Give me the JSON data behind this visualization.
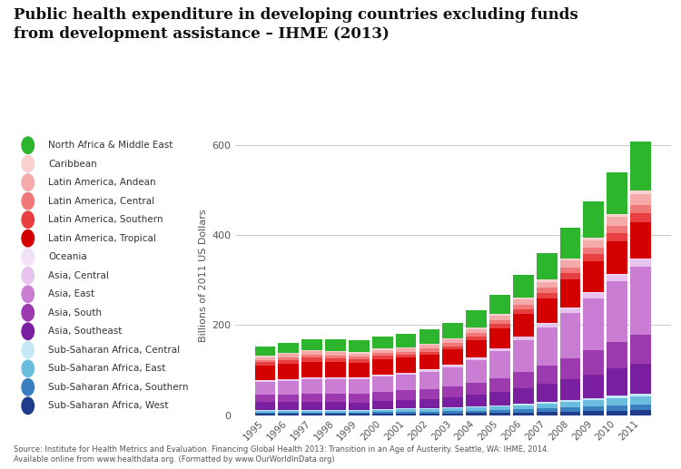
{
  "title": "Public health expenditure in developing countries excluding funds\nfrom development assistance – IHME (2013)",
  "ylabel": "Billions of 2011 US Dollars",
  "source": "Source: Institute for Health Metrics and Evaluation. Financing Global Health 2013: Transition in an Age of Austerity. Seattle, WA: IHME, 2014.\nAvailable online from www.healthdata.org. (Formatted by www.OurWorldInData.org)",
  "years": [
    1995,
    1996,
    1997,
    1998,
    1999,
    2000,
    2001,
    2002,
    2003,
    2004,
    2005,
    2006,
    2007,
    2008,
    2009,
    2010,
    2011
  ],
  "ylim": [
    0,
    620
  ],
  "yticks": [
    0,
    200,
    400,
    600
  ],
  "regions": [
    "Sub-Saharan Africa, West",
    "Sub-Saharan Africa, Southern",
    "Sub-Saharan Africa, East",
    "Sub-Saharan Africa, Central",
    "Asia, Southeast",
    "Asia, South",
    "Asia, East",
    "Asia, Central",
    "Oceania",
    "Latin America, Tropical",
    "Latin America, Southern",
    "Latin America, Central",
    "Latin America, Andean",
    "Caribbean",
    "North Africa & Middle East"
  ],
  "colors": [
    "#1f3b8c",
    "#3a80c1",
    "#6bbde0",
    "#c5e8f7",
    "#7a1fa0",
    "#9e3ab0",
    "#c97ed4",
    "#e6c4ee",
    "#f2e0f5",
    "#d40000",
    "#e84040",
    "#f07878",
    "#f5aaaa",
    "#fad0d0",
    "#2db52d"
  ],
  "data": {
    "Sub-Saharan Africa, West": [
      3,
      3,
      3,
      3,
      3,
      3,
      4,
      4,
      4,
      5,
      5,
      6,
      7,
      8,
      9,
      10,
      11
    ],
    "Sub-Saharan Africa, Southern": [
      3,
      3,
      3,
      3,
      3,
      4,
      4,
      4,
      5,
      5,
      6,
      7,
      8,
      9,
      10,
      11,
      12
    ],
    "Sub-Saharan Africa, East": [
      3,
      3,
      4,
      4,
      4,
      5,
      5,
      5,
      6,
      7,
      8,
      9,
      10,
      12,
      14,
      16,
      18
    ],
    "Sub-Saharan Africa, Central": [
      2,
      2,
      2,
      2,
      2,
      2,
      2,
      2,
      2,
      2,
      3,
      3,
      4,
      4,
      5,
      6,
      6
    ],
    "Asia, Southeast": [
      18,
      18,
      18,
      17,
      16,
      17,
      18,
      20,
      22,
      26,
      30,
      35,
      40,
      46,
      52,
      60,
      66
    ],
    "Asia, South": [
      16,
      17,
      18,
      19,
      20,
      21,
      22,
      23,
      25,
      27,
      30,
      35,
      40,
      48,
      54,
      60,
      66
    ],
    "Asia, East": [
      28,
      30,
      32,
      32,
      31,
      33,
      35,
      38,
      42,
      50,
      60,
      72,
      86,
      100,
      116,
      134,
      150
    ],
    "Asia, Central": [
      3,
      3,
      3,
      3,
      3,
      3,
      3,
      4,
      4,
      5,
      6,
      7,
      8,
      10,
      12,
      14,
      16
    ],
    "Oceania": [
      1,
      1,
      1,
      1,
      1,
      1,
      1,
      1,
      1,
      1,
      1,
      1,
      2,
      2,
      2,
      2,
      2
    ],
    "Latin America, Tropical": [
      32,
      33,
      35,
      34,
      33,
      35,
      34,
      33,
      35,
      38,
      44,
      50,
      55,
      62,
      68,
      74,
      82
    ],
    "Latin America, Southern": [
      9,
      10,
      10,
      9,
      8,
      8,
      7,
      7,
      7,
      8,
      9,
      10,
      12,
      14,
      15,
      17,
      20
    ],
    "Latin America, Central": [
      5,
      6,
      6,
      6,
      6,
      6,
      6,
      7,
      7,
      8,
      9,
      10,
      11,
      13,
      14,
      16,
      18
    ],
    "Latin America, Andean": [
      6,
      7,
      7,
      7,
      7,
      7,
      7,
      8,
      8,
      9,
      10,
      12,
      13,
      15,
      17,
      20,
      23
    ],
    "Caribbean": [
      3,
      3,
      3,
      3,
      3,
      3,
      3,
      3,
      3,
      4,
      4,
      4,
      5,
      5,
      6,
      7,
      8
    ],
    "North Africa & Middle East": [
      20,
      22,
      24,
      25,
      26,
      27,
      29,
      31,
      33,
      37,
      42,
      50,
      58,
      68,
      80,
      92,
      110
    ]
  },
  "legend_order": [
    "North Africa & Middle East",
    "Caribbean",
    "Latin America, Andean",
    "Latin America, Central",
    "Latin America, Southern",
    "Latin America, Tropical",
    "Oceania",
    "Asia, Central",
    "Asia, East",
    "Asia, South",
    "Asia, Southeast",
    "Sub-Saharan Africa, Central",
    "Sub-Saharan Africa, East",
    "Sub-Saharan Africa, Southern",
    "Sub-Saharan Africa, West"
  ],
  "legend_colors": [
    "#2db52d",
    "#fad0d0",
    "#f5aaaa",
    "#f07878",
    "#e84040",
    "#d40000",
    "#f2e0f5",
    "#e6c4ee",
    "#c97ed4",
    "#9e3ab0",
    "#7a1fa0",
    "#c5e8f7",
    "#6bbde0",
    "#3a80c1",
    "#1f3b8c"
  ]
}
